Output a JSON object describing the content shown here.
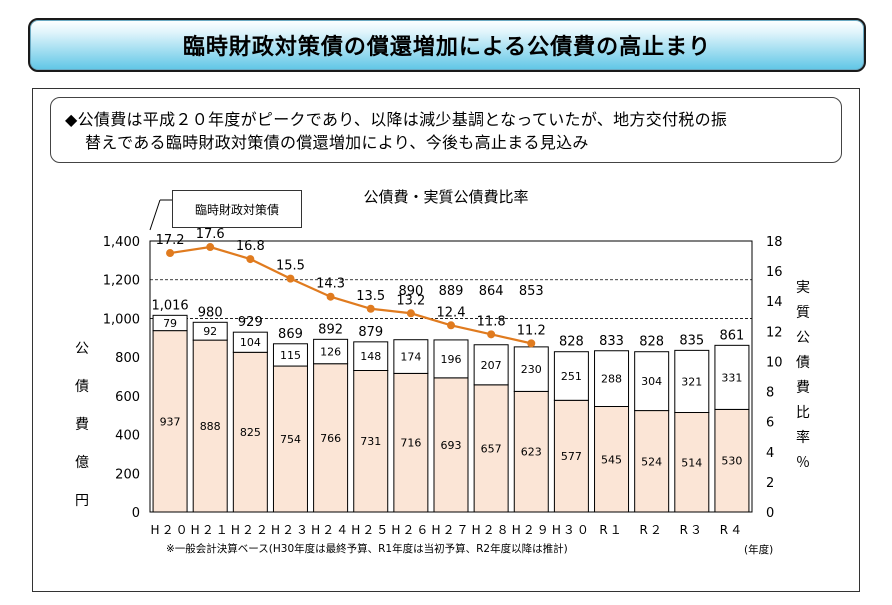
{
  "banner": {
    "title": "臨時財政対策債の償還増加による公債費の高止まり"
  },
  "note": {
    "line1": "◆公債費は平成２０年度がピークであり、以降は減少基調となっていたが、地方交付税の振",
    "line2": "替えである臨時財政対策債の償還増加により、今後も高止まる見込み"
  },
  "legend": {
    "label": "臨時財政対策債"
  },
  "footnote": "※一般会計決算ベース(H30年度は最終予算、R1年度は当初予算、R2年度以降は推計)",
  "unit_label": "(年度)",
  "colors": {
    "bar_fill": "#fbe5d6",
    "line": "#e07b1f",
    "banner_accent": "#5fc6e6"
  },
  "chart_data": {
    "type": "bar",
    "title": "公債費・実質公債費比率",
    "ylabel": "公債費（億円）",
    "y2label": "実質公債費比率（％）",
    "ylim": [
      0,
      1400
    ],
    "y2lim": [
      0,
      18
    ],
    "yticks": [
      "0",
      "200",
      "400",
      "600",
      "800",
      "1,000",
      "1,200",
      "1,400"
    ],
    "y2ticks": [
      "0",
      "2",
      "4",
      "6",
      "8",
      "10",
      "12",
      "14",
      "16",
      "18"
    ],
    "categories": [
      "H２０",
      "H２１",
      "H２２",
      "H２３",
      "H２４",
      "H２５",
      "H２６",
      "H２７",
      "H２８",
      "H２９",
      "H３０",
      "R１",
      "R２",
      "R３",
      "R４"
    ],
    "series": [
      {
        "name": "",
        "values": [
          937,
          888,
          825,
          754,
          766,
          731,
          716,
          693,
          657,
          623,
          577,
          545,
          524,
          514,
          530
        ]
      },
      {
        "name": "臨時財政対策債",
        "values": [
          79,
          92,
          104,
          115,
          126,
          148,
          174,
          196,
          207,
          230,
          251,
          288,
          304,
          321,
          331
        ]
      }
    ],
    "totals": [
      "1,016",
      "980",
      "929",
      "869",
      "892",
      "879",
      "890",
      "889",
      "864",
      "853",
      "828",
      "833",
      "828",
      "835",
      "861"
    ],
    "ratio": {
      "type": "line",
      "values": [
        17.2,
        17.6,
        16.8,
        15.5,
        14.3,
        13.5,
        13.2,
        12.4,
        11.8,
        11.2
      ]
    },
    "grid": true
  }
}
